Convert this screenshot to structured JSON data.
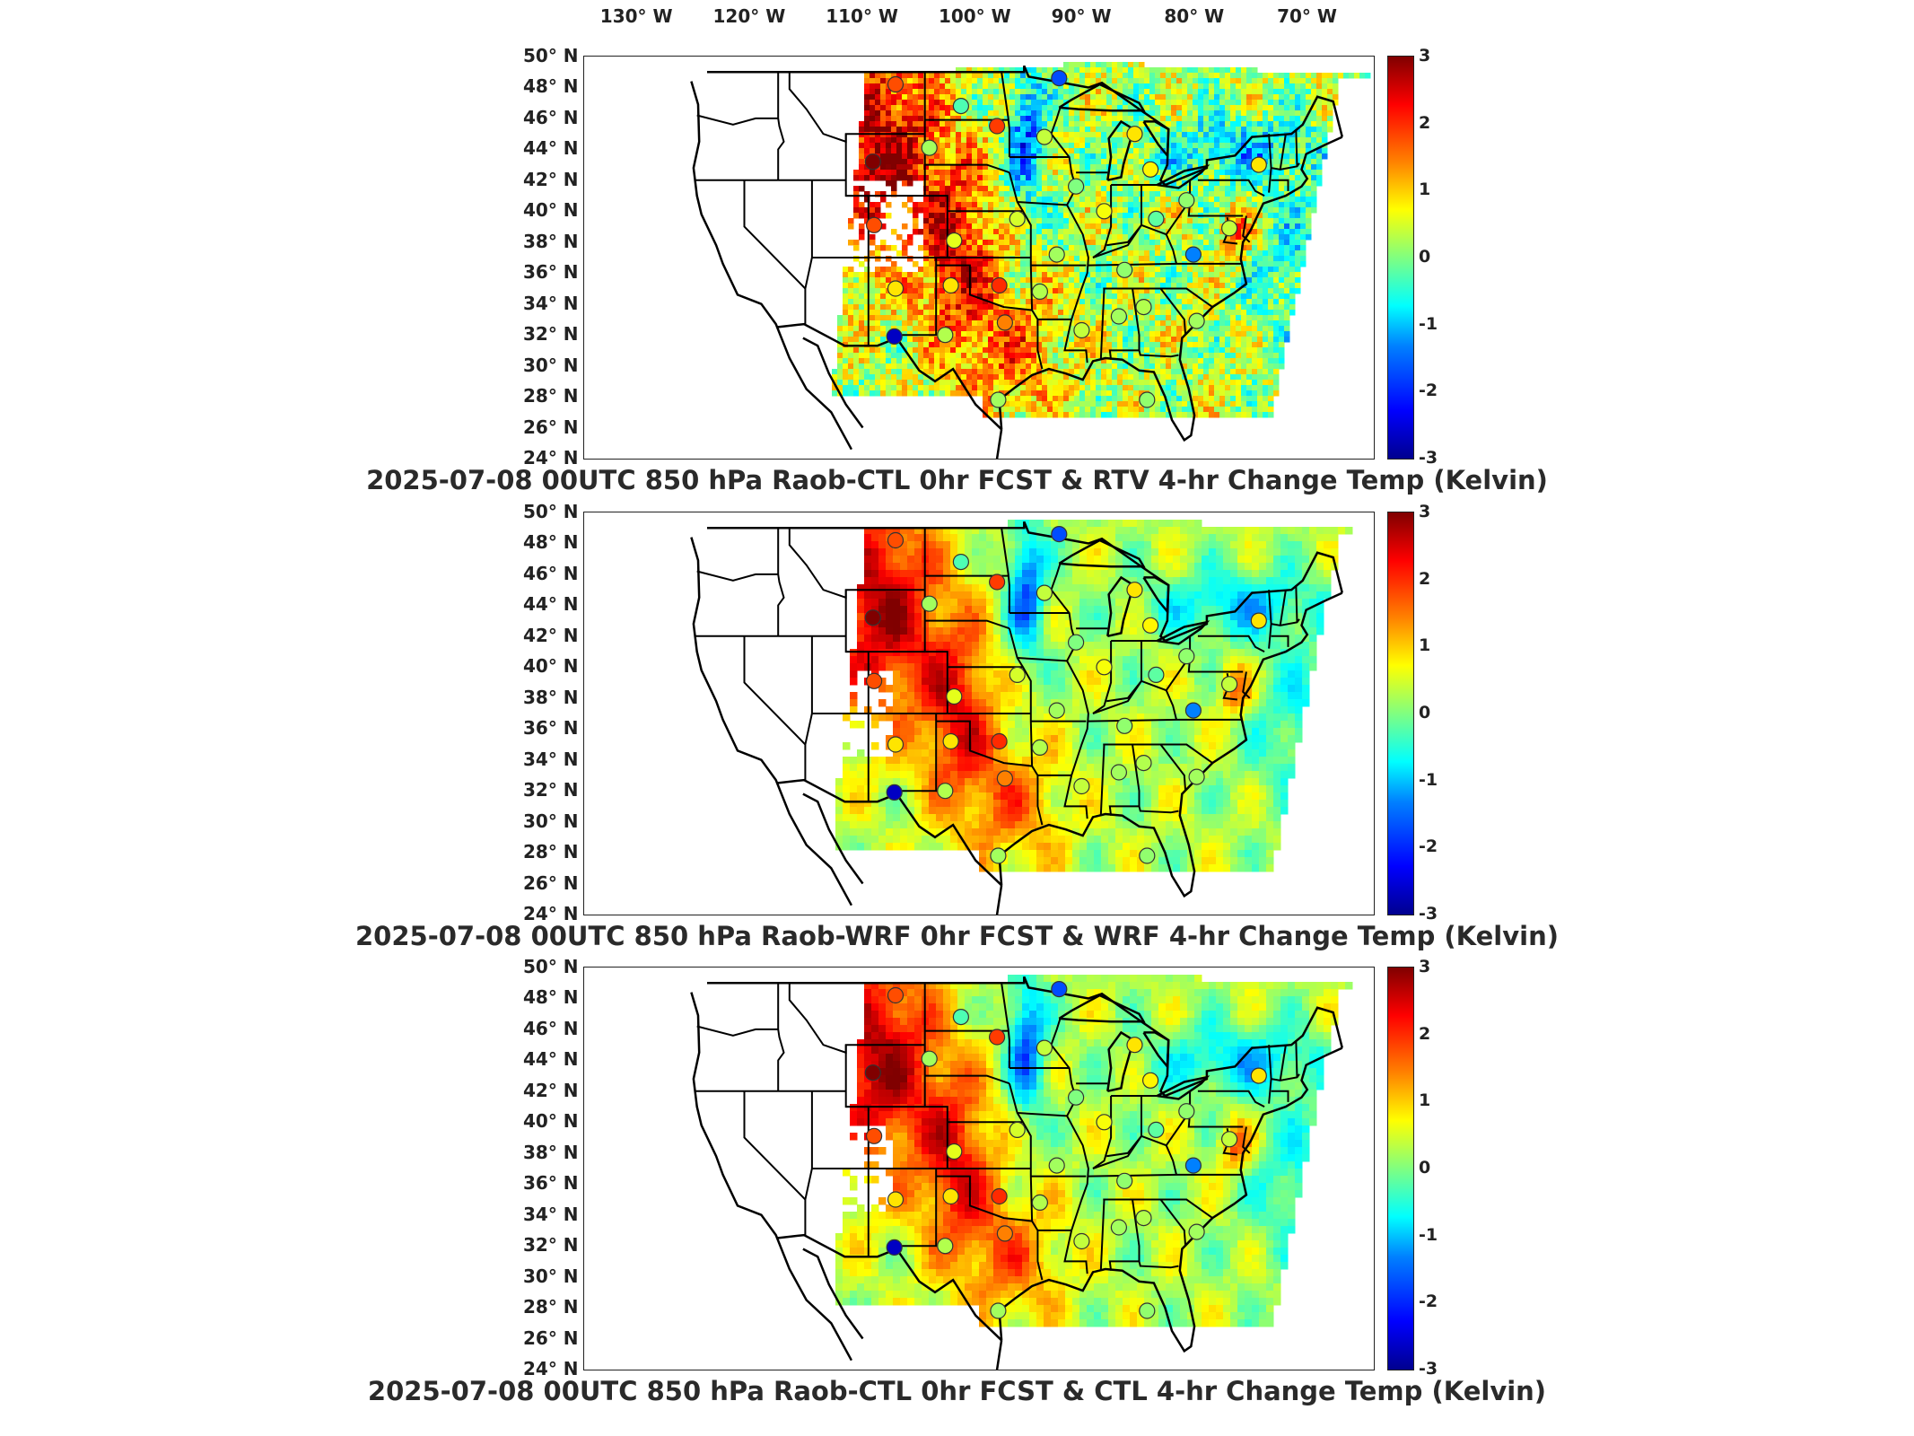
{
  "longitude_labels": [
    {
      "text": "130° W",
      "lon": -130
    },
    {
      "text": "120° W",
      "lon": -120
    },
    {
      "text": "110° W",
      "lon": -110
    },
    {
      "text": "100° W",
      "lon": -100
    },
    {
      "text": "90° W",
      "lon": -90
    },
    {
      "text": "80° W",
      "lon": -80
    },
    {
      "text": "70° W",
      "lon": -70
    }
  ],
  "latitude_labels": [
    "50° N",
    "48° N",
    "46° N",
    "44° N",
    "42° N",
    "40° N",
    "38° N",
    "36° N",
    "34° N",
    "32° N",
    "30° N",
    "28° N",
    "26° N",
    "24° N"
  ],
  "colorbar": {
    "min": -3,
    "max": 3,
    "ticks": [
      "3",
      "2",
      "1",
      "0",
      "-1",
      "-2",
      "-3"
    ],
    "colormap": "jet"
  },
  "panels": [
    {
      "title": "2025-07-08 00UTC 850 hPa Raob-CTL 0hr FCST & RTV 4-hr Change Temp (Kelvin)",
      "style": "noisy"
    },
    {
      "title": "2025-07-08 00UTC 850 hPa Raob-WRF 0hr FCST & WRF 4-hr Change Temp (Kelvin)",
      "style": "smooth"
    },
    {
      "title": "2025-07-08 00UTC 850 hPa Raob-CTL 0hr FCST & CTL 4-hr Change Temp (Kelvin)",
      "style": "smooth"
    }
  ],
  "raob_stations": [
    {
      "lon": -106.6,
      "lat": 48.2,
      "v": 1.8
    },
    {
      "lon": -108.6,
      "lat": 43.2,
      "v": 3.0
    },
    {
      "lon": -108.5,
      "lat": 39.1,
      "v": 1.8
    },
    {
      "lon": -106.6,
      "lat": 35.0,
      "v": 0.9
    },
    {
      "lon": -106.7,
      "lat": 31.9,
      "v": -2.6
    },
    {
      "lon": -100.8,
      "lat": 46.8,
      "v": -0.3
    },
    {
      "lon": -103.6,
      "lat": 44.1,
      "v": 0.2
    },
    {
      "lon": -97.6,
      "lat": 45.5,
      "v": 1.9
    },
    {
      "lon": -93.4,
      "lat": 44.8,
      "v": 0.4
    },
    {
      "lon": -92.1,
      "lat": 48.6,
      "v": -1.8
    },
    {
      "lon": -101.4,
      "lat": 38.1,
      "v": 0.6
    },
    {
      "lon": -97.4,
      "lat": 35.2,
      "v": 2.0
    },
    {
      "lon": -96.9,
      "lat": 32.8,
      "v": 1.5
    },
    {
      "lon": -102.2,
      "lat": 32.0,
      "v": 0.3
    },
    {
      "lon": -101.7,
      "lat": 35.2,
      "v": 0.9
    },
    {
      "lon": -95.8,
      "lat": 39.5,
      "v": 0.5
    },
    {
      "lon": -92.3,
      "lat": 37.2,
      "v": 0.2
    },
    {
      "lon": -90.6,
      "lat": 41.6,
      "v": 0.0
    },
    {
      "lon": -88.1,
      "lat": 40.0,
      "v": 0.7
    },
    {
      "lon": -93.8,
      "lat": 34.8,
      "v": 0.3
    },
    {
      "lon": -90.1,
      "lat": 32.3,
      "v": 0.4
    },
    {
      "lon": -86.8,
      "lat": 33.2,
      "v": 0.2
    },
    {
      "lon": -84.6,
      "lat": 33.8,
      "v": 0.3
    },
    {
      "lon": -86.3,
      "lat": 36.2,
      "v": 0.1
    },
    {
      "lon": -85.4,
      "lat": 45.0,
      "v": 0.9
    },
    {
      "lon": -84.0,
      "lat": 42.7,
      "v": 0.8
    },
    {
      "lon": -83.5,
      "lat": 39.5,
      "v": -0.2
    },
    {
      "lon": -80.2,
      "lat": 37.2,
      "v": -1.5
    },
    {
      "lon": -80.8,
      "lat": 40.7,
      "v": 0.1
    },
    {
      "lon": -79.9,
      "lat": 32.9,
      "v": 0.2
    },
    {
      "lon": -77.0,
      "lat": 38.9,
      "v": 0.4
    },
    {
      "lon": -74.4,
      "lat": 43.0,
      "v": 0.9
    },
    {
      "lon": -97.5,
      "lat": 27.8,
      "v": 0.2
    },
    {
      "lon": -84.3,
      "lat": 27.8,
      "v": 0.1
    }
  ]
}
